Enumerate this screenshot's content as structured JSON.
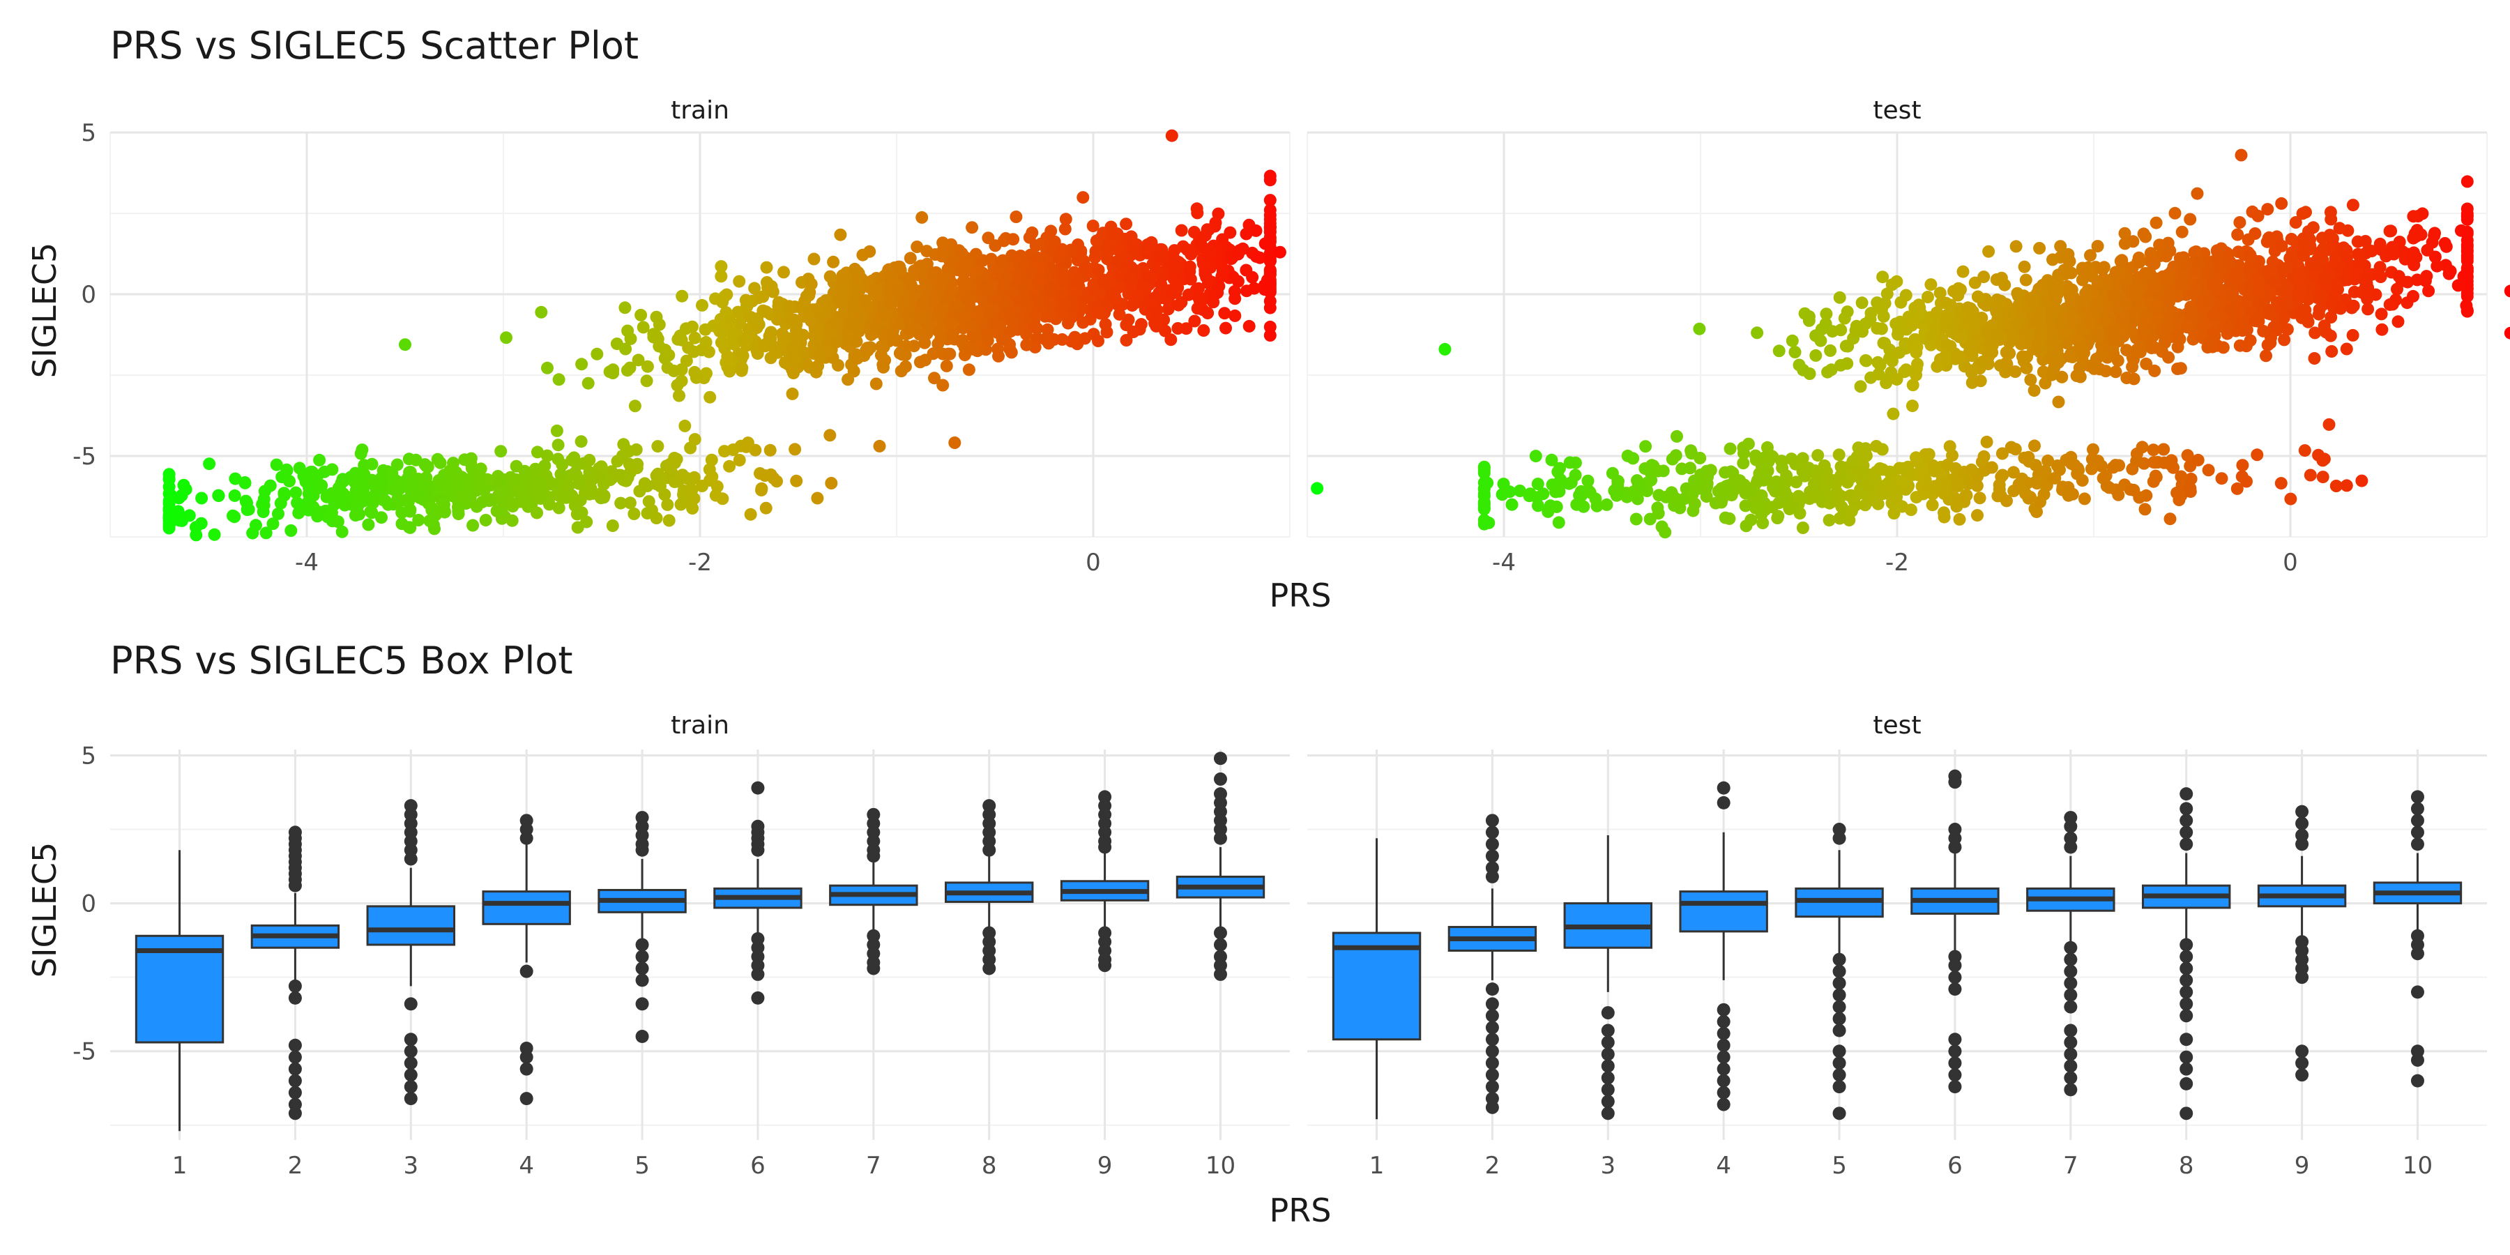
{
  "chart_data": [
    {
      "type": "scatter",
      "title": "PRS vs SIGLEC5 Scatter Plot",
      "xlabel": "PRS",
      "ylabel": "SIGLEC5",
      "facets": [
        "train",
        "test"
      ],
      "xlim": [
        -5.0,
        1.0
      ],
      "ylim": [
        -7.5,
        5.0
      ],
      "x_ticks": [
        -4,
        -2,
        0
      ],
      "y_ticks": [
        -5,
        0,
        5
      ],
      "grid": true,
      "color_gradient": {
        "low": "#00ff00",
        "mid": "#c0b000",
        "high": "#ff0000",
        "variable": "PRS"
      },
      "clusters": [
        {
          "facet": "train",
          "name": "upper",
          "x_center": -0.6,
          "x_sd": 0.75,
          "x_range": [
            -3.5,
            0.9
          ],
          "slope": 0.9,
          "intercept": 0.35,
          "y_sd": 0.85,
          "n": 1500
        },
        {
          "facet": "train",
          "name": "lower",
          "x_center": -3.2,
          "x_sd": 0.75,
          "x_range": [
            -4.7,
            -0.5
          ],
          "slope": 0.35,
          "intercept": -4.9,
          "y_sd": 0.55,
          "n": 550
        },
        {
          "facet": "test",
          "name": "upper",
          "x_center": -0.7,
          "x_sd": 0.75,
          "x_range": [
            -3.7,
            0.9
          ],
          "slope": 0.85,
          "intercept": 0.3,
          "y_sd": 0.85,
          "n": 1500
        },
        {
          "facet": "test",
          "name": "lower",
          "x_center": -2.2,
          "x_sd": 1.0,
          "x_range": [
            -4.1,
            0.6
          ],
          "slope": 0.2,
          "intercept": -5.4,
          "y_sd": 0.55,
          "n": 550
        }
      ],
      "notable_points": [
        {
          "facet": "train",
          "x": -4.65,
          "y": -6.3
        },
        {
          "facet": "train",
          "x": 0.95,
          "y": 1.3
        },
        {
          "facet": "train",
          "x": 0.4,
          "y": 4.9
        },
        {
          "facet": "test",
          "x": -4.95,
          "y": -6.0
        },
        {
          "facet": "test",
          "x": -4.3,
          "y": -1.7
        },
        {
          "facet": "test",
          "x": 1.12,
          "y": 0.1
        },
        {
          "facet": "test",
          "x": 1.12,
          "y": -1.2
        },
        {
          "facet": "test",
          "x": -0.25,
          "y": 4.3
        }
      ]
    },
    {
      "type": "box",
      "title": "PRS vs SIGLEC5 Box Plot",
      "xlabel": "PRS",
      "ylabel": "SIGLEC5",
      "facets": [
        "train",
        "test"
      ],
      "categories": [
        "1",
        "2",
        "3",
        "4",
        "5",
        "6",
        "7",
        "8",
        "9",
        "10"
      ],
      "ylim": [
        -8.0,
        5.2
      ],
      "y_ticks": [
        -5,
        0,
        5
      ],
      "fill": "#1e90ff",
      "boxes": {
        "train": [
          {
            "q1": -4.7,
            "median": -1.6,
            "q3": -1.1,
            "whisker_low": -7.7,
            "whisker_high": 1.8,
            "outliers": []
          },
          {
            "q1": -1.5,
            "median": -1.1,
            "q3": -0.75,
            "whisker_low": -2.6,
            "whisker_high": 0.35,
            "outliers": [
              2.4,
              2.2,
              2.0,
              1.8,
              1.6,
              1.4,
              1.2,
              1.0,
              0.8,
              0.6,
              -2.8,
              -3.2,
              -4.8,
              -5.2,
              -5.6,
              -6.0,
              -6.4,
              -6.8,
              -7.1
            ]
          },
          {
            "q1": -1.4,
            "median": -0.9,
            "q3": -0.1,
            "whisker_low": -2.8,
            "whisker_high": 1.2,
            "outliers": [
              3.3,
              3.0,
              2.7,
              2.4,
              2.1,
              1.8,
              1.5,
              -3.4,
              -4.6,
              -5.0,
              -5.4,
              -5.8,
              -6.2,
              -6.6
            ]
          },
          {
            "q1": -0.7,
            "median": 0.0,
            "q3": 0.4,
            "whisker_low": -2.0,
            "whisker_high": 2.0,
            "outliers": [
              2.8,
              2.5,
              2.2,
              -2.3,
              -4.9,
              -5.2,
              -5.6,
              -6.6
            ]
          },
          {
            "q1": -0.3,
            "median": 0.1,
            "q3": 0.45,
            "whisker_low": -1.3,
            "whisker_high": 1.5,
            "outliers": [
              2.9,
              2.6,
              2.3,
              2.0,
              1.8,
              -1.4,
              -1.8,
              -2.2,
              -2.6,
              -3.4,
              -4.5
            ]
          },
          {
            "q1": -0.15,
            "median": 0.2,
            "q3": 0.5,
            "whisker_low": -1.1,
            "whisker_high": 1.5,
            "outliers": [
              3.9,
              2.6,
              2.4,
              2.2,
              2.0,
              1.8,
              -1.2,
              -1.5,
              -1.8,
              -2.1,
              -2.4,
              -3.2
            ]
          },
          {
            "q1": -0.05,
            "median": 0.3,
            "q3": 0.6,
            "whisker_low": -1.0,
            "whisker_high": 1.5,
            "outliers": [
              3.0,
              2.7,
              2.4,
              2.1,
              1.8,
              1.6,
              -1.1,
              -1.4,
              -1.7,
              -2.0,
              -2.2
            ]
          },
          {
            "q1": 0.05,
            "median": 0.35,
            "q3": 0.7,
            "whisker_low": -0.9,
            "whisker_high": 1.6,
            "outliers": [
              3.3,
              3.0,
              2.7,
              2.4,
              2.1,
              1.8,
              -1.0,
              -1.3,
              -1.6,
              -1.9,
              -2.2
            ]
          },
          {
            "q1": 0.1,
            "median": 0.4,
            "q3": 0.75,
            "whisker_low": -0.9,
            "whisker_high": 1.7,
            "outliers": [
              3.6,
              3.3,
              3.0,
              2.7,
              2.4,
              2.1,
              1.9,
              -1.0,
              -1.3,
              -1.6,
              -1.9,
              -2.1
            ]
          },
          {
            "q1": 0.2,
            "median": 0.55,
            "q3": 0.9,
            "whisker_low": -0.8,
            "whisker_high": 1.9,
            "outliers": [
              4.9,
              4.2,
              3.7,
              3.4,
              3.1,
              2.8,
              2.5,
              2.2,
              -1.0,
              -1.4,
              -1.8,
              -2.1,
              -2.4
            ]
          }
        ],
        "test": [
          {
            "q1": -4.6,
            "median": -1.5,
            "q3": -1.0,
            "whisker_low": -7.3,
            "whisker_high": 2.2,
            "outliers": []
          },
          {
            "q1": -1.6,
            "median": -1.2,
            "q3": -0.8,
            "whisker_low": -2.6,
            "whisker_high": 0.5,
            "outliers": [
              2.8,
              2.4,
              2.0,
              1.6,
              1.2,
              0.9,
              -2.9,
              -3.4,
              -3.8,
              -4.2,
              -4.6,
              -5.0,
              -5.4,
              -5.8,
              -6.2,
              -6.6,
              -6.9
            ]
          },
          {
            "q1": -1.5,
            "median": -0.8,
            "q3": 0.0,
            "whisker_low": -3.0,
            "whisker_high": 2.3,
            "outliers": [
              -3.7,
              -4.3,
              -4.7,
              -5.1,
              -5.5,
              -5.9,
              -6.3,
              -6.7,
              -7.1
            ]
          },
          {
            "q1": -0.95,
            "median": 0.0,
            "q3": 0.4,
            "whisker_low": -2.6,
            "whisker_high": 2.4,
            "outliers": [
              3.9,
              3.4,
              -3.6,
              -4.0,
              -4.4,
              -4.8,
              -5.2,
              -5.6,
              -6.0,
              -6.4,
              -6.8
            ]
          },
          {
            "q1": -0.45,
            "median": 0.1,
            "q3": 0.5,
            "whisker_low": -1.8,
            "whisker_high": 1.8,
            "outliers": [
              2.5,
              2.2,
              -1.9,
              -2.3,
              -2.7,
              -3.1,
              -3.5,
              -3.9,
              -4.3,
              -5.0,
              -5.4,
              -5.8,
              -6.2,
              -7.1
            ]
          },
          {
            "q1": -0.35,
            "median": 0.1,
            "q3": 0.5,
            "whisker_low": -1.6,
            "whisker_high": 1.7,
            "outliers": [
              4.3,
              4.1,
              2.5,
              2.2,
              1.9,
              -1.8,
              -2.1,
              -2.5,
              -2.9,
              -4.6,
              -5.0,
              -5.4,
              -5.8,
              -6.2
            ]
          },
          {
            "q1": -0.25,
            "median": 0.15,
            "q3": 0.5,
            "whisker_low": -1.3,
            "whisker_high": 1.6,
            "outliers": [
              2.9,
              2.6,
              2.2,
              1.9,
              -1.5,
              -1.9,
              -2.3,
              -2.7,
              -3.1,
              -3.5,
              -4.3,
              -4.7,
              -5.1,
              -5.5,
              -5.9,
              -6.3
            ]
          },
          {
            "q1": -0.15,
            "median": 0.25,
            "q3": 0.6,
            "whisker_low": -1.2,
            "whisker_high": 1.7,
            "outliers": [
              3.7,
              3.2,
              2.8,
              2.4,
              2.0,
              -1.4,
              -1.8,
              -2.2,
              -2.6,
              -3.0,
              -3.4,
              -3.8,
              -4.6,
              -5.2,
              -5.6,
              -6.1,
              -7.1
            ]
          },
          {
            "q1": -0.1,
            "median": 0.25,
            "q3": 0.6,
            "whisker_low": -1.1,
            "whisker_high": 1.6,
            "outliers": [
              3.1,
              2.7,
              2.3,
              2.0,
              -1.3,
              -1.6,
              -1.9,
              -2.2,
              -2.5,
              -5.0,
              -5.4,
              -5.8
            ]
          },
          {
            "q1": 0.0,
            "median": 0.35,
            "q3": 0.7,
            "whisker_low": -1.0,
            "whisker_high": 1.7,
            "outliers": [
              3.6,
              3.2,
              2.8,
              2.4,
              2.0,
              -1.1,
              -1.4,
              -1.7,
              -3.0,
              -5.0,
              -5.3,
              -6.0
            ]
          }
        ]
      }
    }
  ]
}
